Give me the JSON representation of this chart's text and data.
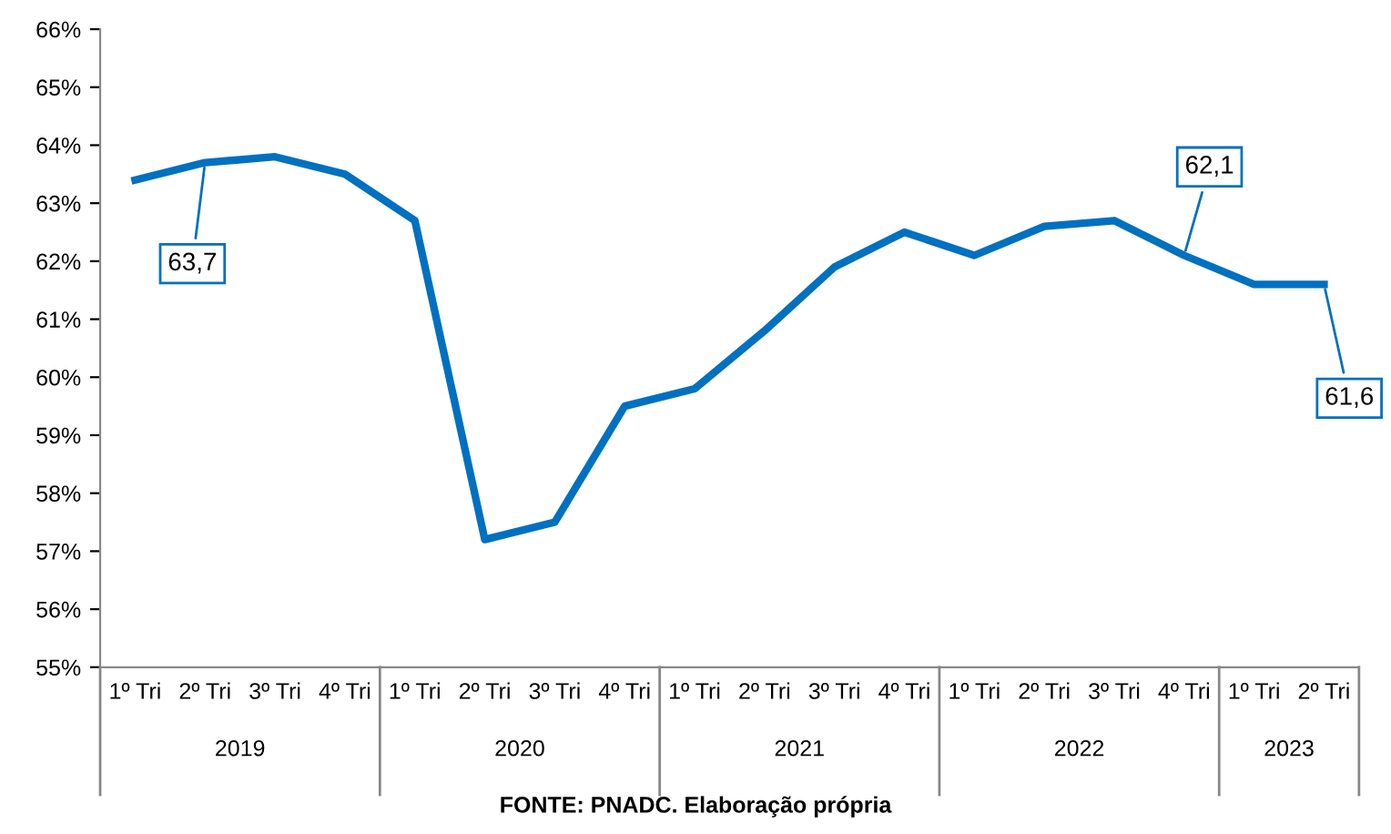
{
  "chart_data": {
    "type": "line",
    "categories": [
      "1º Tri",
      "2º Tri",
      "3º Tri",
      "4º Tri",
      "1º Tri",
      "2º Tri",
      "3º Tri",
      "4º Tri",
      "1º Tri",
      "2º Tri",
      "3º Tri",
      "4º Tri",
      "1º Tri",
      "2º Tri",
      "3º Tri",
      "4º Tri",
      "1º Tri",
      "2º Tri"
    ],
    "series": [
      {
        "color": "#0070c0",
        "values": [
          63.4,
          63.7,
          63.8,
          63.5,
          62.7,
          57.2,
          57.5,
          59.5,
          59.8,
          60.8,
          61.9,
          62.5,
          62.1,
          62.6,
          62.7,
          62.1,
          61.6,
          61.6
        ],
        "value_labels": [
          null,
          "63,7",
          null,
          null,
          null,
          null,
          null,
          null,
          null,
          null,
          null,
          null,
          null,
          null,
          null,
          "62,1",
          null,
          "61,6"
        ]
      }
    ],
    "ylim": [
      55,
      66
    ],
    "yticks": [
      {
        "value": 55,
        "label": "55%"
      },
      {
        "value": 56,
        "label": "56%"
      },
      {
        "value": 57,
        "label": "57%"
      },
      {
        "value": 58,
        "label": "58%"
      },
      {
        "value": 59,
        "label": "59%"
      },
      {
        "value": 60,
        "label": "60%"
      },
      {
        "value": 61,
        "label": "61%"
      },
      {
        "value": 62,
        "label": "62%"
      },
      {
        "value": 63,
        "label": "63%"
      },
      {
        "value": 64,
        "label": "64%"
      },
      {
        "value": 65,
        "label": "65%"
      },
      {
        "value": 66,
        "label": "66%"
      }
    ],
    "grid": false,
    "legend": false,
    "marker": "none",
    "line_style": "solid",
    "annotations": [
      "2019",
      "2020",
      "2021",
      "2022",
      "2023",
      "FONTE: PNADC. Elaboração própria"
    ]
  }
}
